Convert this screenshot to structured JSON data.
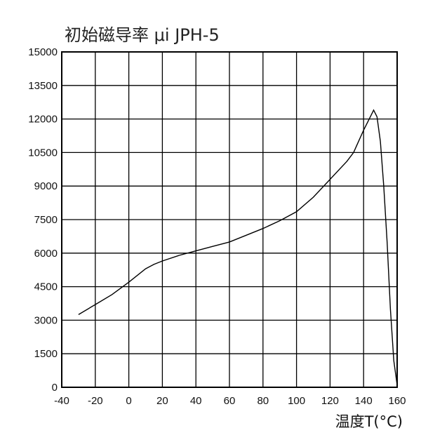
{
  "chart_data": {
    "type": "line",
    "title": "初始磁导率 μi  JPH-5",
    "xlabel": "温度T(°C)",
    "ylabel": "",
    "xlim": [
      -40,
      160
    ],
    "ylim": [
      0,
      15000
    ],
    "x_ticks": [
      "-40",
      "-20",
      "0",
      "20",
      "40",
      "60",
      "80",
      "100",
      "120",
      "140",
      "160"
    ],
    "y_ticks": [
      "0",
      "1500",
      "3000",
      "4500",
      "6000",
      "7500",
      "9000",
      "10500",
      "12000",
      "13500",
      "15000"
    ],
    "grid": true,
    "series": [
      {
        "x": [
          -30,
          -20,
          -10,
          0,
          10,
          15,
          20,
          30,
          40,
          50,
          60,
          70,
          80,
          90,
          100,
          110,
          120,
          130,
          134,
          140,
          144,
          146,
          148,
          150,
          152,
          154,
          156,
          158,
          160
        ],
        "values": [
          3250,
          3700,
          4150,
          4700,
          5300,
          5500,
          5650,
          5900,
          6100,
          6300,
          6500,
          6800,
          7100,
          7450,
          7850,
          8500,
          9300,
          10100,
          10500,
          11500,
          12100,
          12400,
          12100,
          11000,
          9000,
          6500,
          3500,
          1200,
          100
        ]
      }
    ]
  }
}
